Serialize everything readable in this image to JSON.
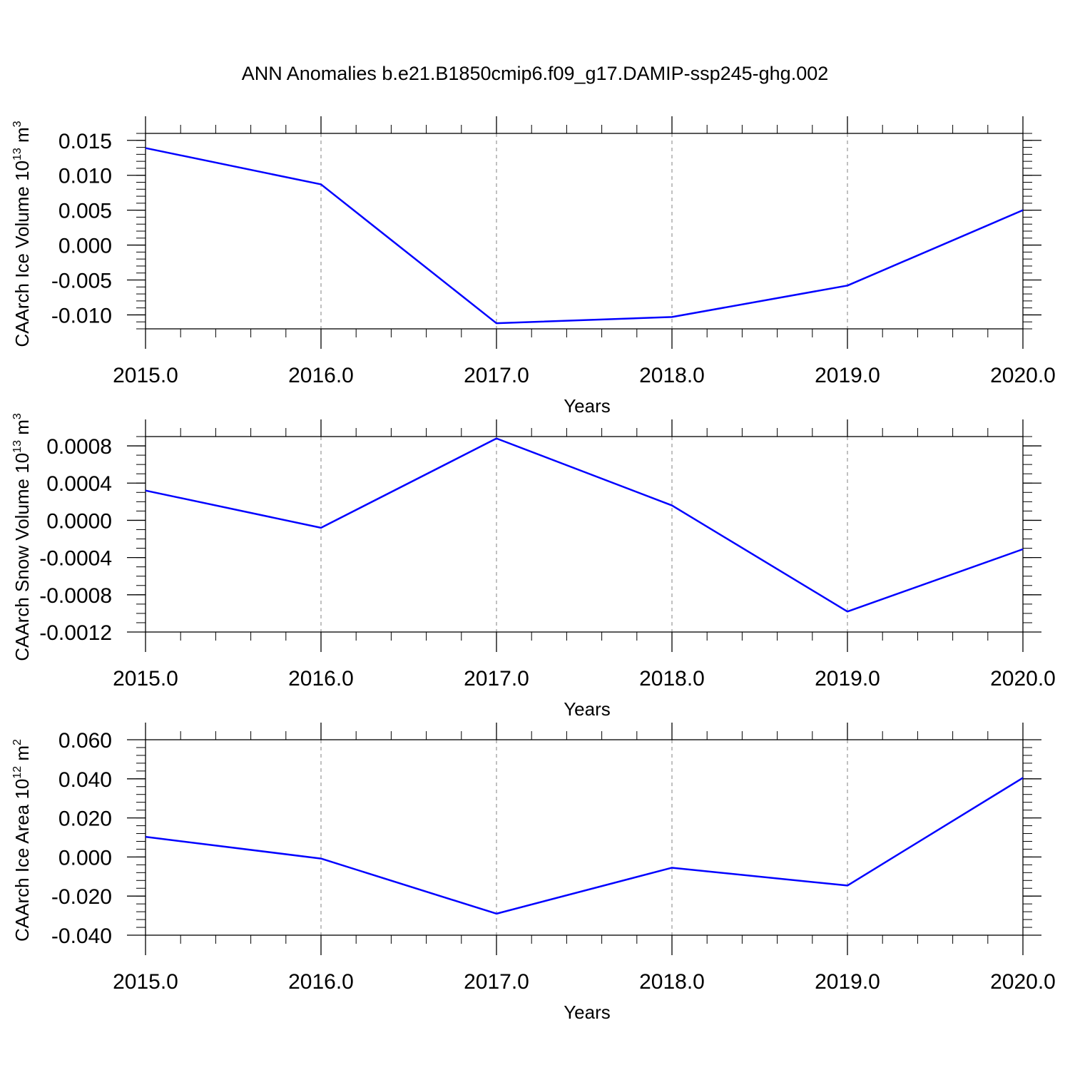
{
  "title": "ANN Anomalies b.e21.B1850cmip6.f09_g17.DAMIP-ssp245-ghg.002",
  "colors": {
    "series": "#0000ff",
    "axis": "#000000",
    "grid": "#808080"
  },
  "chart_data": [
    {
      "type": "line",
      "ylabel": {
        "text": "CAArch Ice Volume 10",
        "exp": "13",
        "unit": " m",
        "unit_exp": "3"
      },
      "xlabel": "Years",
      "x": [
        2015,
        2016,
        2017,
        2018,
        2019,
        2020
      ],
      "x_tick_labels": [
        "2015.0",
        "2016.0",
        "2017.0",
        "2018.0",
        "2019.0",
        "2020.0"
      ],
      "series": [
        {
          "values": [
            0.0139,
            0.0087,
            -0.0112,
            -0.0103,
            -0.0058,
            0.005
          ]
        }
      ],
      "xlim": [
        2015,
        2020
      ],
      "ylim": [
        -0.012,
        0.016
      ],
      "y_ticks": [
        0.015,
        0.01,
        0.005,
        0.0,
        -0.005,
        -0.01
      ],
      "y_tick_labels": [
        "0.015",
        "0.010",
        "0.005",
        "0.000",
        "-0.005",
        "-0.010"
      ],
      "y_minor_step": 0.001,
      "grid": "vertical dashed"
    },
    {
      "type": "line",
      "ylabel": {
        "text": "CAArch Snow Volume 10",
        "exp": "13",
        "unit": " m",
        "unit_exp": "3"
      },
      "xlabel": "Years",
      "x": [
        2015,
        2016,
        2017,
        2018,
        2019,
        2020
      ],
      "x_tick_labels": [
        "2015.0",
        "2016.0",
        "2017.0",
        "2018.0",
        "2019.0",
        "2020.0"
      ],
      "series": [
        {
          "values": [
            0.00032,
            -8e-05,
            0.00088,
            0.00016,
            -0.00098,
            -0.00031
          ]
        }
      ],
      "xlim": [
        2015,
        2020
      ],
      "ylim": [
        -0.0012,
        0.0009
      ],
      "y_ticks": [
        0.0008,
        0.0004,
        0.0,
        -0.0004,
        -0.0008,
        -0.0012
      ],
      "y_tick_labels": [
        "0.0008",
        "0.0004",
        "0.0000",
        "-0.0004",
        "-0.0008",
        "-0.0012"
      ],
      "y_minor_step": 0.0001,
      "grid": "vertical dashed"
    },
    {
      "type": "line",
      "ylabel": {
        "text": "CAArch Ice Area 10",
        "exp": "12",
        "unit": " m",
        "unit_exp": "2"
      },
      "xlabel": "Years",
      "x": [
        2015,
        2016,
        2017,
        2018,
        2019,
        2020
      ],
      "x_tick_labels": [
        "2015.0",
        "2016.0",
        "2017.0",
        "2018.0",
        "2019.0",
        "2020.0"
      ],
      "series": [
        {
          "values": [
            0.0103,
            -0.0008,
            -0.029,
            -0.0055,
            -0.0146,
            0.0405
          ]
        }
      ],
      "xlim": [
        2015,
        2020
      ],
      "ylim": [
        -0.04,
        0.06
      ],
      "y_ticks": [
        0.06,
        0.04,
        0.02,
        0.0,
        -0.02,
        -0.04
      ],
      "y_tick_labels": [
        "0.060",
        "0.040",
        "0.020",
        "0.000",
        "-0.020",
        "-0.040"
      ],
      "y_minor_step": 0.004,
      "grid": "vertical dashed"
    }
  ]
}
